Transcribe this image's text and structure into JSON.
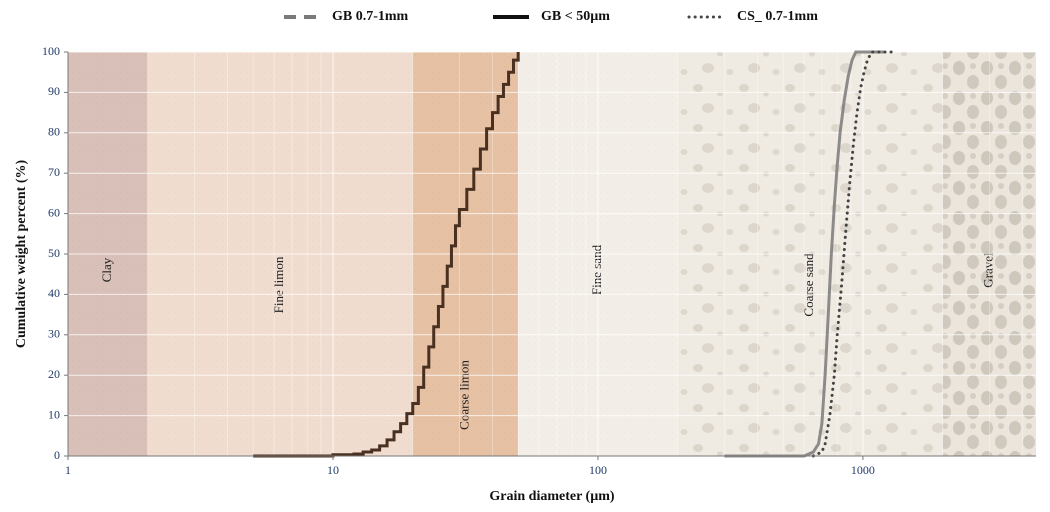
{
  "chart_data": {
    "type": "line",
    "title": "",
    "xlabel": "Grain diameter (µm)",
    "ylabel": "Cumulative weight percent (%)",
    "x_scale": "log",
    "xlim": [
      1,
      4500
    ],
    "ylim": [
      0,
      100
    ],
    "x_ticks": [
      "1",
      "10",
      "100",
      "1000"
    ],
    "y_ticks": [
      "0",
      "10",
      "20",
      "30",
      "40",
      "50",
      "60",
      "70",
      "80",
      "90",
      "100"
    ],
    "grid": true,
    "legend_position": "top",
    "zones": [
      {
        "label": "Clay",
        "from": 1,
        "to": 2,
        "color": "#d9c0b8"
      },
      {
        "label": "Fine limon",
        "from": 2,
        "to": 20,
        "color": "#f1ddcf"
      },
      {
        "label": "Coarse limon",
        "from": 20,
        "to": 50,
        "color": "#e6c1a4"
      },
      {
        "label": "Fine sand",
        "from": 50,
        "to": 200,
        "color": "#f3efe8"
      },
      {
        "label": "Coarse sand",
        "from": 200,
        "to": 2000,
        "color": "#f0ebe2"
      },
      {
        "label": "Gravel",
        "from": 2000,
        "to": 4500,
        "color": "#ebe5dc"
      }
    ],
    "series": [
      {
        "name": "GB 0.7-1mm",
        "style": "dashed",
        "color": "#7a7a7a",
        "x": [
          300,
          600,
          650,
          680,
          700,
          720,
          740,
          760,
          780,
          800,
          820,
          850,
          880,
          910,
          940,
          1200
        ],
        "y": [
          0,
          0,
          1,
          3,
          8,
          20,
          35,
          50,
          62,
          72,
          80,
          88,
          94,
          98,
          100,
          100
        ]
      },
      {
        "name": "GB < 50µm",
        "style": "solid-step",
        "color": "#4a3020",
        "x": [
          5,
          10,
          12,
          13,
          14,
          15,
          16,
          17,
          18,
          19,
          20,
          21,
          22,
          23,
          24,
          25,
          26,
          27,
          28,
          29,
          30,
          32,
          34,
          36,
          38,
          40,
          42,
          44,
          46,
          48,
          50
        ],
        "y": [
          0,
          0.3,
          0.5,
          1,
          1.5,
          2.5,
          4,
          6,
          8,
          10.5,
          13,
          17,
          22,
          27,
          32,
          37,
          42,
          47,
          52,
          57,
          61,
          66,
          71,
          76,
          81,
          85,
          89,
          92,
          95,
          98,
          100
        ]
      },
      {
        "name": "CS_ 0.7-1mm",
        "style": "dotted",
        "color": "#444444",
        "x": [
          650,
          700,
          720,
          750,
          780,
          800,
          830,
          860,
          890,
          920,
          950,
          980,
          1010,
          1040,
          1080,
          1300
        ],
        "y": [
          0,
          1,
          3,
          10,
          20,
          30,
          42,
          55,
          67,
          77,
          85,
          91,
          95,
          98,
          100,
          100
        ]
      }
    ]
  }
}
